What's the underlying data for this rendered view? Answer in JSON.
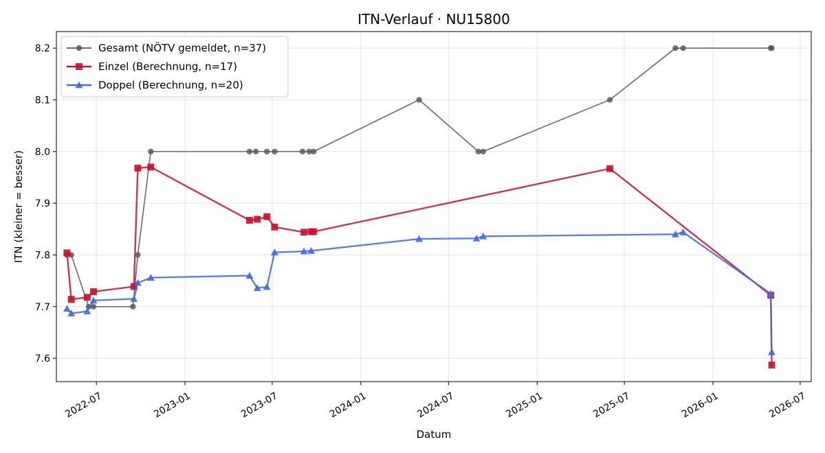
{
  "chart_data": {
    "type": "line",
    "title": "ITN-Verlauf · NU15800",
    "xlabel": "Datum",
    "ylabel": "ITN  (kleiner = besser)",
    "x_type": "date",
    "xlim": [
      "2022-04-09",
      "2026-07-24"
    ],
    "ylim": [
      7.555,
      8.232
    ],
    "x_ticks": [
      "2022-07-01",
      "2023-01-01",
      "2023-07-01",
      "2024-01-01",
      "2024-07-01",
      "2025-01-01",
      "2025-07-01",
      "2026-01-01",
      "2026-07-01"
    ],
    "x_tick_labels": [
      "2022-07",
      "2023-01",
      "2023-07",
      "2024-01",
      "2024-07",
      "2025-01",
      "2025-07",
      "2026-01",
      "2026-07"
    ],
    "y_ticks": [
      7.6,
      7.7,
      7.8,
      7.9,
      8.0,
      8.1,
      8.2
    ],
    "y_tick_labels": [
      "7.6",
      "7.7",
      "7.8",
      "7.9",
      "8.0",
      "8.1",
      "8.2"
    ],
    "grid": true,
    "legend_position": "top-left",
    "series": [
      {
        "name": "Gesamt (NÖTV gemeldet, n=37)",
        "color": "#555555",
        "marker": "circle",
        "points": [
          [
            "2022-05-01",
            7.8
          ],
          [
            "2022-05-10",
            7.8
          ],
          [
            "2022-06-15",
            7.7
          ],
          [
            "2022-06-25",
            7.7
          ],
          [
            "2022-09-15",
            7.7
          ],
          [
            "2022-09-25",
            7.8
          ],
          [
            "2022-10-22",
            8.0
          ],
          [
            "2023-05-15",
            8.0
          ],
          [
            "2023-05-28",
            8.0
          ],
          [
            "2023-06-20",
            8.0
          ],
          [
            "2023-07-06",
            8.0
          ],
          [
            "2023-09-02",
            8.0
          ],
          [
            "2023-09-16",
            8.0
          ],
          [
            "2023-09-25",
            8.0
          ],
          [
            "2024-05-01",
            8.1
          ],
          [
            "2024-09-01",
            8.0
          ],
          [
            "2024-09-11",
            8.0
          ],
          [
            "2025-06-01",
            8.1
          ],
          [
            "2025-10-15",
            8.2
          ],
          [
            "2025-10-31",
            8.2
          ],
          [
            "2026-05-01",
            8.2
          ],
          [
            "2026-05-03",
            8.2
          ]
        ]
      },
      {
        "name": "Einzel (Berechnung, n=17)",
        "color": "#c8102e",
        "marker": "square",
        "points": [
          [
            "2022-05-01",
            7.804
          ],
          [
            "2022-05-10",
            7.714
          ],
          [
            "2022-06-12",
            7.718
          ],
          [
            "2022-06-25",
            7.729
          ],
          [
            "2022-09-17",
            7.739
          ],
          [
            "2022-09-25",
            7.968
          ],
          [
            "2022-10-22",
            7.97
          ],
          [
            "2023-05-15",
            7.867
          ],
          [
            "2023-05-31",
            7.869
          ],
          [
            "2023-06-20",
            7.874
          ],
          [
            "2023-07-06",
            7.854
          ],
          [
            "2023-09-05",
            7.844
          ],
          [
            "2023-09-20",
            7.845
          ],
          [
            "2023-09-25",
            7.845
          ],
          [
            "2025-06-01",
            7.967
          ],
          [
            "2026-05-01",
            7.722
          ],
          [
            "2026-05-03",
            7.587
          ]
        ]
      },
      {
        "name": "Doppel (Berechnung, n=20)",
        "color": "#4169e1",
        "marker": "triangle",
        "points": [
          [
            "2022-05-01",
            7.696
          ],
          [
            "2022-05-10",
            7.687
          ],
          [
            "2022-06-12",
            7.691
          ],
          [
            "2022-06-25",
            7.712
          ],
          [
            "2022-09-17",
            7.715
          ],
          [
            "2022-09-25",
            7.746
          ],
          [
            "2022-10-22",
            7.756
          ],
          [
            "2023-05-15",
            7.76
          ],
          [
            "2023-05-31",
            7.736
          ],
          [
            "2023-06-20",
            7.738
          ],
          [
            "2023-07-06",
            7.805
          ],
          [
            "2023-09-05",
            7.807
          ],
          [
            "2023-09-20",
            7.808
          ],
          [
            "2024-05-01",
            7.831
          ],
          [
            "2024-08-28",
            7.832
          ],
          [
            "2024-09-11",
            7.836
          ],
          [
            "2025-10-15",
            7.84
          ],
          [
            "2025-10-31",
            7.844
          ],
          [
            "2026-05-01",
            7.725
          ],
          [
            "2026-05-03",
            7.612
          ]
        ]
      }
    ]
  }
}
